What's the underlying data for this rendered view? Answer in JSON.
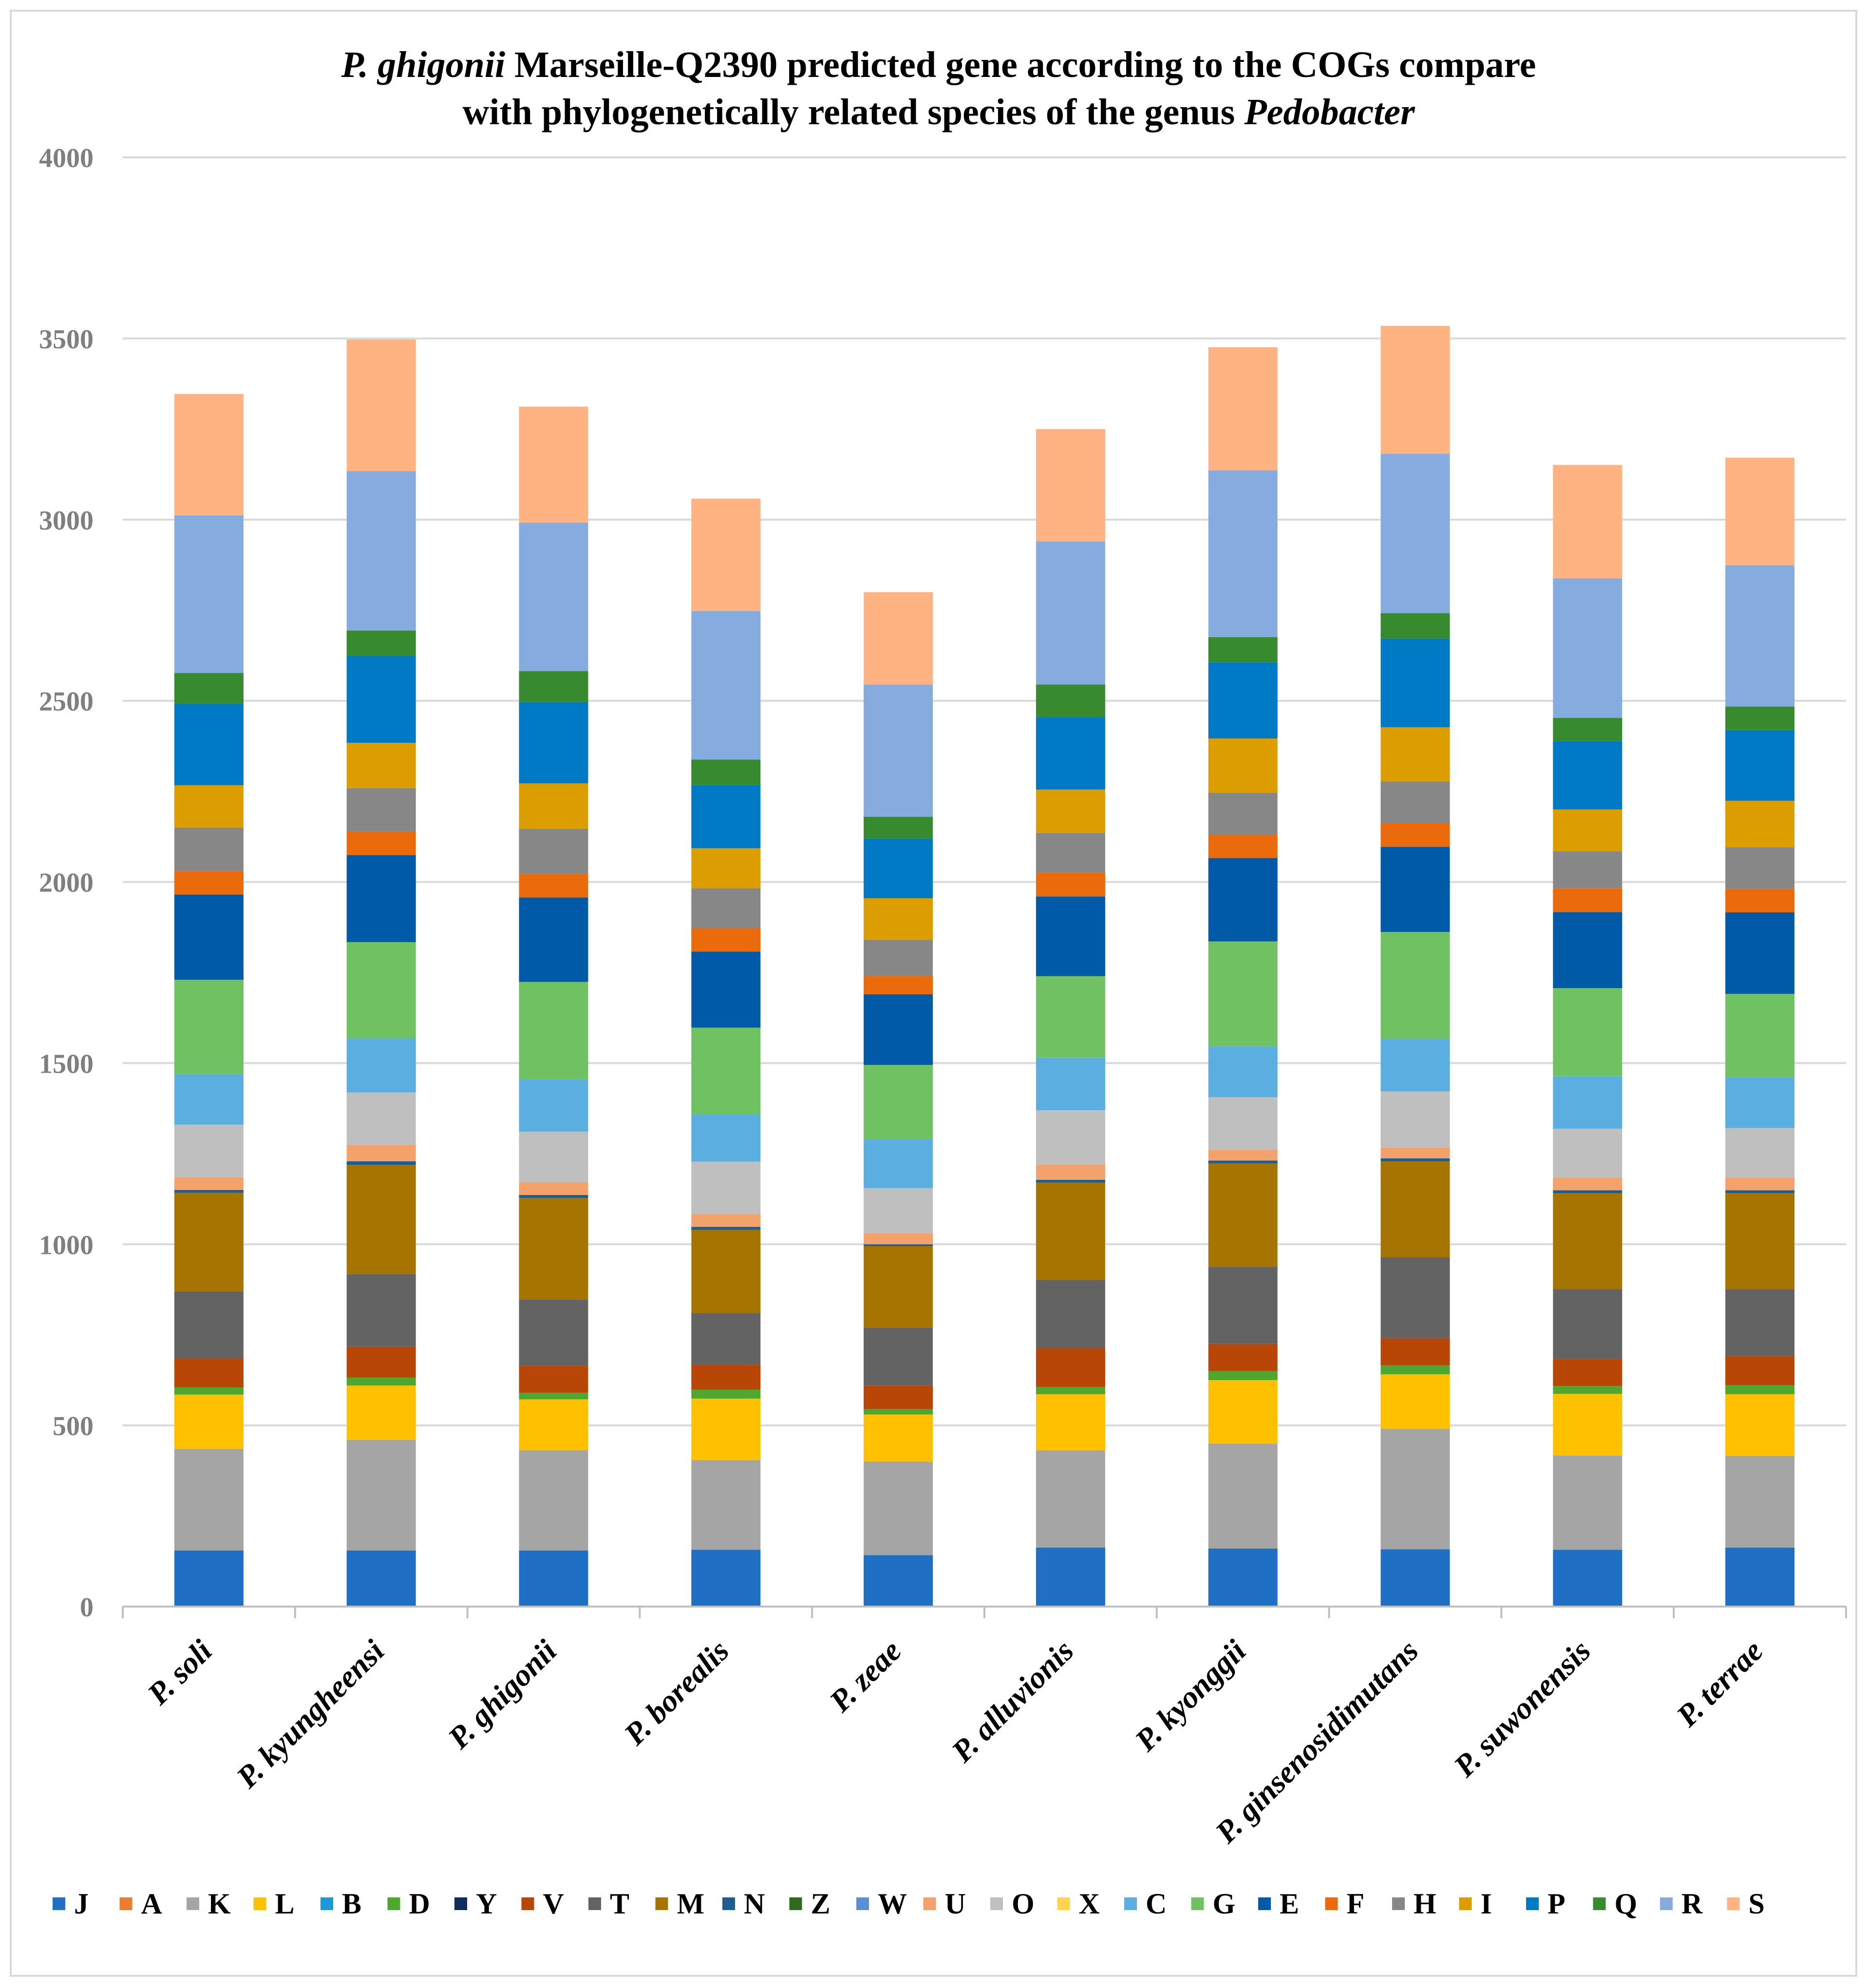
{
  "chart_data": {
    "type": "bar",
    "stacked": true,
    "title_parts": [
      {
        "text": "P. ghigonii",
        "italic": true,
        "line": 1
      },
      {
        "text": " Marseille-Q2390 predicted gene according to the COGs compare",
        "italic": false,
        "line": 1
      },
      {
        "text": "with phylogenetically related species of the genus ",
        "italic": false,
        "line": 2
      },
      {
        "text": "Pedobacter",
        "italic": true,
        "line": 2
      }
    ],
    "ylim": [
      0,
      4000
    ],
    "yticks": [
      0,
      500,
      1000,
      1500,
      2000,
      2500,
      3000,
      3500,
      4000
    ],
    "grid": true,
    "legend_position": "bottom",
    "categories": [
      "P. soli",
      "P. kyungheensi",
      "P. ghigonii",
      "P. borealis",
      "P. zeae",
      "P. alluvionis",
      "P. kyonggii",
      "P. ginsenosidimutans",
      "P. suwonensis",
      "P. terrae"
    ],
    "series": [
      {
        "name": "J",
        "color": "#1f6fc5",
        "values": [
          155,
          155,
          155,
          157,
          142,
          163,
          160,
          158,
          157,
          163
        ]
      },
      {
        "name": "A",
        "color": "#ed7d31",
        "values": [
          0,
          0,
          0,
          0,
          0,
          0,
          0,
          0,
          0,
          0
        ]
      },
      {
        "name": "K",
        "color": "#a5a5a5",
        "values": [
          280,
          305,
          277,
          247,
          258,
          268,
          290,
          333,
          260,
          253
        ]
      },
      {
        "name": "L",
        "color": "#ffc000",
        "values": [
          150,
          150,
          140,
          170,
          130,
          155,
          175,
          150,
          170,
          170
        ]
      },
      {
        "name": "B",
        "color": "#1c9ad6",
        "values": [
          0,
          0,
          0,
          0,
          0,
          0,
          0,
          0,
          0,
          0
        ]
      },
      {
        "name": "D",
        "color": "#4ea72e",
        "values": [
          20,
          22,
          18,
          25,
          15,
          20,
          25,
          25,
          22,
          25
        ]
      },
      {
        "name": "Y",
        "color": "#0e2c5e",
        "values": [
          0,
          0,
          0,
          0,
          0,
          0,
          0,
          0,
          0,
          0
        ]
      },
      {
        "name": "V",
        "color": "#b84607",
        "values": [
          80,
          85,
          75,
          68,
          65,
          108,
          75,
          75,
          75,
          80
        ]
      },
      {
        "name": "T",
        "color": "#636363",
        "values": [
          185,
          200,
          183,
          143,
          160,
          188,
          213,
          223,
          192,
          185
        ]
      },
      {
        "name": "M",
        "color": "#a67400",
        "values": [
          272,
          302,
          280,
          230,
          225,
          268,
          285,
          265,
          265,
          265
        ]
      },
      {
        "name": "N",
        "color": "#1d5d8f",
        "values": [
          8,
          10,
          8,
          8,
          5,
          8,
          8,
          8,
          8,
          8
        ]
      },
      {
        "name": "Z",
        "color": "#2e6b1f",
        "values": [
          0,
          0,
          0,
          0,
          0,
          0,
          0,
          0,
          0,
          0
        ]
      },
      {
        "name": "W",
        "color": "#5a8fd6",
        "values": [
          0,
          0,
          0,
          0,
          0,
          0,
          0,
          0,
          0,
          0
        ]
      },
      {
        "name": "U",
        "color": "#f4a26b",
        "values": [
          35,
          45,
          35,
          35,
          30,
          42,
          30,
          30,
          35,
          35
        ]
      },
      {
        "name": "O",
        "color": "#bfbfbf",
        "values": [
          145,
          145,
          140,
          145,
          125,
          150,
          145,
          155,
          135,
          137
        ]
      },
      {
        "name": "X",
        "color": "#ffd34f",
        "values": [
          0,
          0,
          0,
          0,
          0,
          0,
          0,
          0,
          0,
          0
        ]
      },
      {
        "name": "C",
        "color": "#5bafe0",
        "values": [
          140,
          150,
          145,
          130,
          135,
          145,
          140,
          145,
          145,
          140
        ]
      },
      {
        "name": "G",
        "color": "#70c161",
        "values": [
          260,
          265,
          268,
          240,
          205,
          225,
          290,
          295,
          243,
          230
        ]
      },
      {
        "name": "E",
        "color": "#005aa8",
        "values": [
          235,
          240,
          233,
          210,
          195,
          220,
          230,
          235,
          210,
          225
        ]
      },
      {
        "name": "F",
        "color": "#ea6a0c",
        "values": [
          65,
          65,
          65,
          65,
          50,
          65,
          65,
          65,
          65,
          65
        ]
      },
      {
        "name": "H",
        "color": "#878787",
        "values": [
          120,
          120,
          125,
          110,
          100,
          110,
          115,
          115,
          103,
          115
        ]
      },
      {
        "name": "I",
        "color": "#dc9d00",
        "values": [
          117,
          125,
          125,
          110,
          115,
          120,
          150,
          150,
          115,
          128
        ]
      },
      {
        "name": "P",
        "color": "#007ac4",
        "values": [
          225,
          240,
          225,
          175,
          165,
          200,
          210,
          245,
          188,
          195
        ]
      },
      {
        "name": "Q",
        "color": "#378a2d",
        "values": [
          85,
          70,
          85,
          70,
          60,
          90,
          70,
          70,
          65,
          65
        ]
      },
      {
        "name": "R",
        "color": "#86acdf",
        "values": [
          435,
          440,
          410,
          410,
          365,
          395,
          460,
          440,
          385,
          390
        ]
      },
      {
        "name": "S",
        "color": "#ffb383",
        "values": [
          335,
          363,
          320,
          310,
          255,
          310,
          340,
          353,
          313,
          297
        ]
      }
    ]
  }
}
